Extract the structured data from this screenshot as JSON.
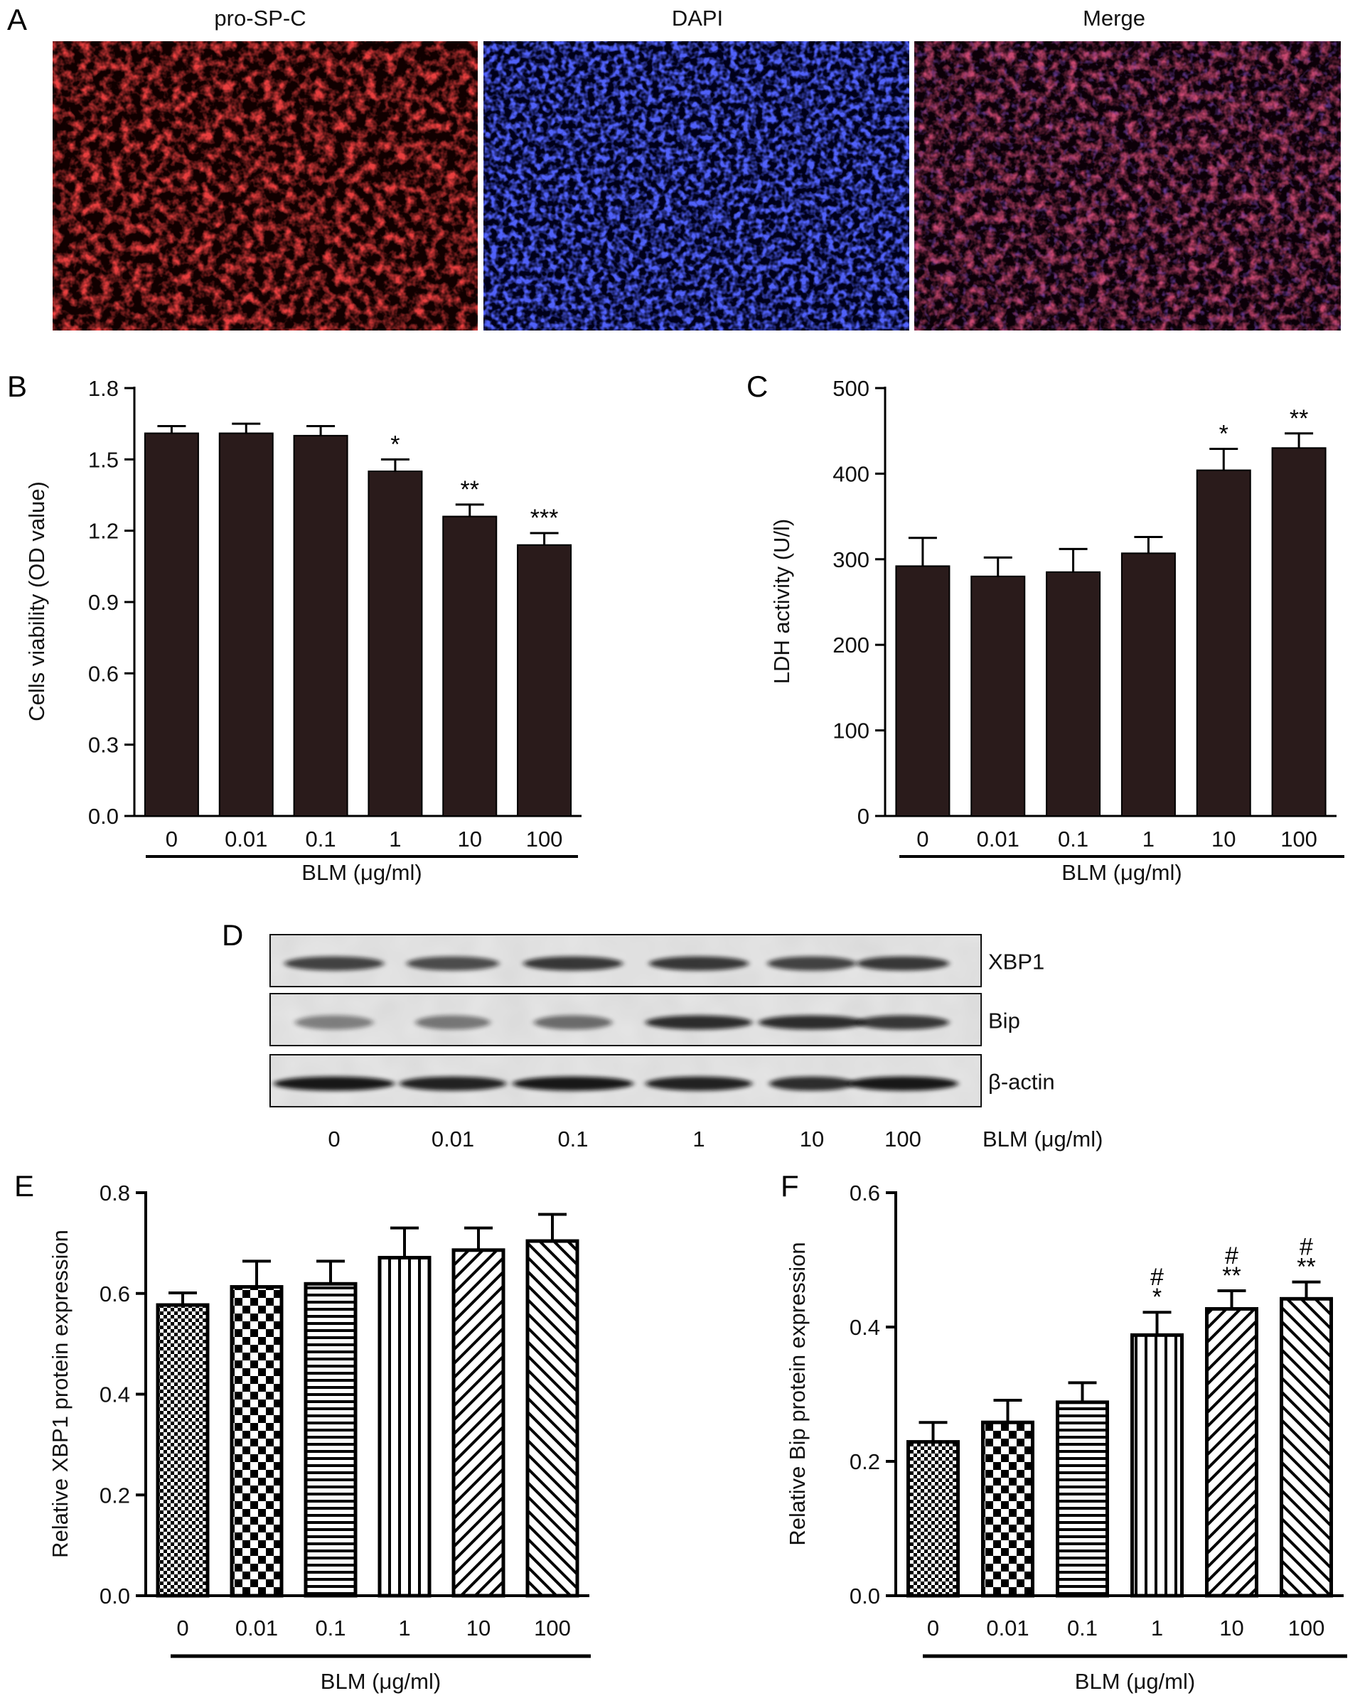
{
  "panel_letters": [
    "A",
    "B",
    "C",
    "D",
    "E",
    "F"
  ],
  "micrographs": {
    "channels": [
      {
        "label": "pro-SP-C",
        "color": "#d9261c"
      },
      {
        "label": "DAPI",
        "color": "#1f22d8"
      },
      {
        "label": "Merge",
        "color": "#111111"
      }
    ]
  },
  "western_blot": {
    "rows": [
      "XBP1",
      "Bip",
      "β-actin"
    ],
    "lanes": [
      "0",
      "0.01",
      "0.1",
      "1",
      "10",
      "100"
    ],
    "unit_label": "BLM (μg/ml)"
  },
  "chart_data": [
    {
      "type": "bar",
      "panel": "B",
      "categories": [
        "0",
        "0.01",
        "0.1",
        "1",
        "10",
        "100"
      ],
      "values": [
        1.61,
        1.61,
        1.6,
        1.45,
        1.26,
        1.14
      ],
      "errors": [
        0.03,
        0.04,
        0.04,
        0.05,
        0.05,
        0.05
      ],
      "significance": [
        "",
        "",
        "",
        "*",
        "**",
        "***"
      ],
      "xlabel": "BLM (μg/ml)",
      "ylabel": "Cells viability (OD value)",
      "ylim": [
        0,
        1.8
      ],
      "yticks": [
        "0.0",
        "0.3",
        "0.6",
        "0.9",
        "1.2",
        "1.5",
        "1.8"
      ],
      "bar_color": "#2a1b1b",
      "grid": false
    },
    {
      "type": "bar",
      "panel": "C",
      "categories": [
        "0",
        "0.01",
        "0.1",
        "1",
        "10",
        "100"
      ],
      "values": [
        292,
        280,
        285,
        307,
        404,
        430
      ],
      "errors": [
        33,
        22,
        27,
        19,
        25,
        17
      ],
      "significance": [
        "",
        "",
        "",
        "",
        "*",
        "**"
      ],
      "xlabel": "BLM (μg/ml)",
      "ylabel": "LDH activity (U/l)",
      "ylim": [
        0,
        500
      ],
      "yticks": [
        "0",
        "100",
        "200",
        "300",
        "400",
        "500"
      ],
      "bar_color": "#2a1b1b",
      "grid": false
    },
    {
      "type": "bar",
      "panel": "E",
      "categories": [
        "0",
        "0.01",
        "0.1",
        "1",
        "10",
        "100"
      ],
      "values": [
        0.577,
        0.613,
        0.619,
        0.671,
        0.686,
        0.704
      ],
      "errors": [
        0.024,
        0.051,
        0.045,
        0.059,
        0.044,
        0.053
      ],
      "significance": [
        "",
        "",
        "",
        "",
        "",
        ""
      ],
      "patterns": [
        "fine-check",
        "checker",
        "hlines",
        "vlines",
        "diag-right",
        "diag-left"
      ],
      "xlabel": "BLM (μg/ml)",
      "ylabel": "Relative XBP1 protein expression",
      "ylim": [
        0,
        0.8
      ],
      "yticks": [
        "0.0",
        "0.2",
        "0.4",
        "0.6",
        "0.8"
      ],
      "grid": false
    },
    {
      "type": "bar",
      "panel": "F",
      "categories": [
        "0",
        "0.01",
        "0.1",
        "1",
        "10",
        "100"
      ],
      "values": [
        0.229,
        0.258,
        0.288,
        0.388,
        0.427,
        0.442
      ],
      "errors": [
        0.029,
        0.033,
        0.029,
        0.034,
        0.027,
        0.025
      ],
      "significance": [
        "",
        "",
        "",
        "*",
        "**",
        "**"
      ],
      "hash_marks": [
        "",
        "",
        "",
        "#",
        "#",
        "#"
      ],
      "patterns": [
        "fine-check",
        "checker",
        "hlines",
        "vlines",
        "diag-right",
        "diag-left"
      ],
      "xlabel": "BLM (μg/ml)",
      "ylabel": "Relative Bip protein expression",
      "ylim": [
        0,
        0.6
      ],
      "yticks": [
        "0.0",
        "0.2",
        "0.4",
        "0.6"
      ],
      "grid": false
    }
  ]
}
